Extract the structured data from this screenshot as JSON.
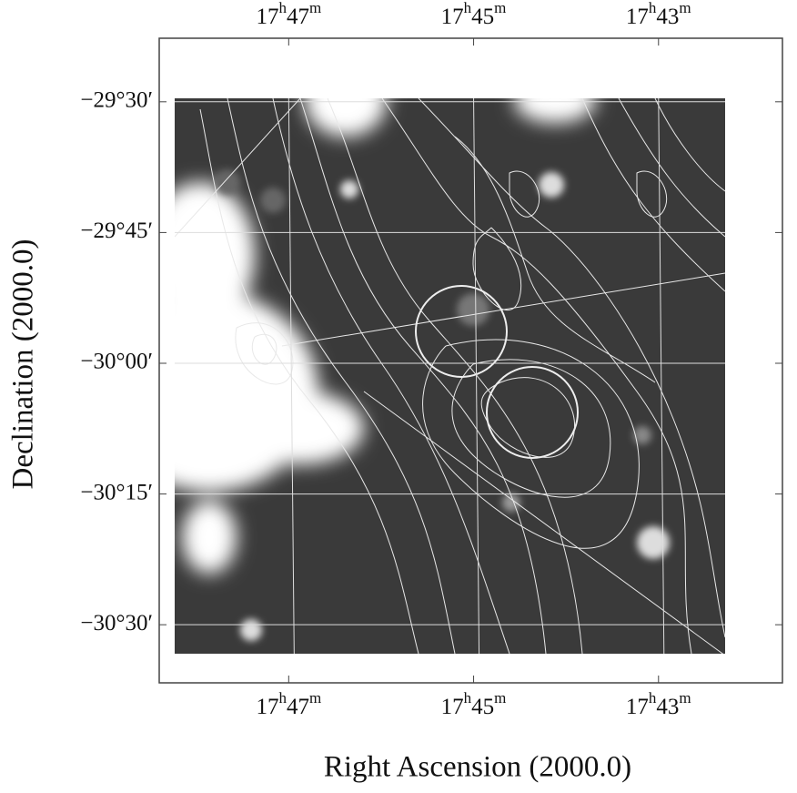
{
  "chart_data": {
    "type": "image",
    "x_label": "Right Ascension (2000.0)",
    "y_label": "Declination (2000.0)",
    "xlim": [
      17.80667,
      17.69433
    ],
    "ylim": [
      -30.61111,
      -29.37847
    ],
    "xticks": [
      {
        "value": 17.78333,
        "label": "17h47m"
      },
      {
        "value": 17.75,
        "label": "17h45m"
      },
      {
        "value": 17.71667,
        "label": "17h43m"
      }
    ],
    "yticks": [
      {
        "value": -29.5,
        "label": "−29°30′"
      },
      {
        "value": -29.75,
        "label": "−29°45′"
      },
      {
        "value": -30.0,
        "label": "−30°00′"
      },
      {
        "value": -30.25,
        "label": "−30°15′"
      },
      {
        "value": -30.5,
        "label": "−30°30′"
      }
    ],
    "grid": true
  }
}
